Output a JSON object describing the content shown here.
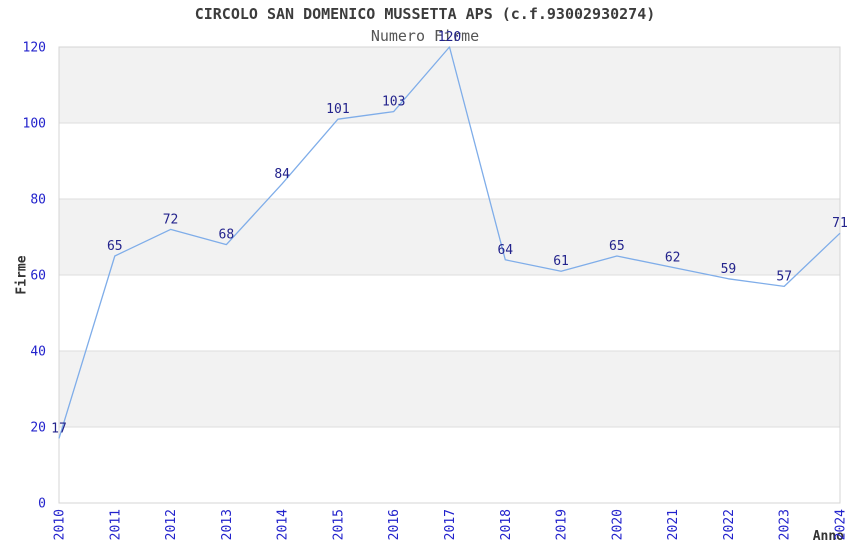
{
  "chart_data": {
    "type": "line",
    "title": "CIRCOLO SAN DOMENICO MUSSETTA APS (c.f.93002930274)",
    "subtitle": "Numero Firme",
    "xlabel": "Anno",
    "ylabel": "Firme",
    "categories": [
      "2010",
      "2011",
      "2012",
      "2013",
      "2014",
      "2015",
      "2016",
      "2017",
      "2018",
      "2019",
      "2020",
      "2021",
      "2022",
      "2023",
      "2024"
    ],
    "series": [
      {
        "name": "Numero Firme",
        "values": [
          17,
          65,
          72,
          68,
          84,
          101,
          103,
          120,
          64,
          61,
          65,
          62,
          59,
          57,
          71
        ]
      }
    ],
    "ylim": [
      0,
      120
    ],
    "yticks": [
      0,
      20,
      40,
      60,
      80,
      100,
      120
    ],
    "ytick_step": 20,
    "show_point_labels": true,
    "point_markers": false,
    "legend_position": "none",
    "grid": "alternating-horizontal-bands",
    "x_tick_rotation": -90,
    "colors": {
      "line": "#7FADE9",
      "point_label": "#23238C",
      "tick_label": "#2222CC",
      "band": "#F2F2F2",
      "grid_line": "#DDDDDD",
      "plot_border": "#D4D4D4",
      "title": "#3C3C3C",
      "subtitle": "#555555",
      "axis_title": "#333333",
      "background": "#FFFFFF"
    }
  }
}
